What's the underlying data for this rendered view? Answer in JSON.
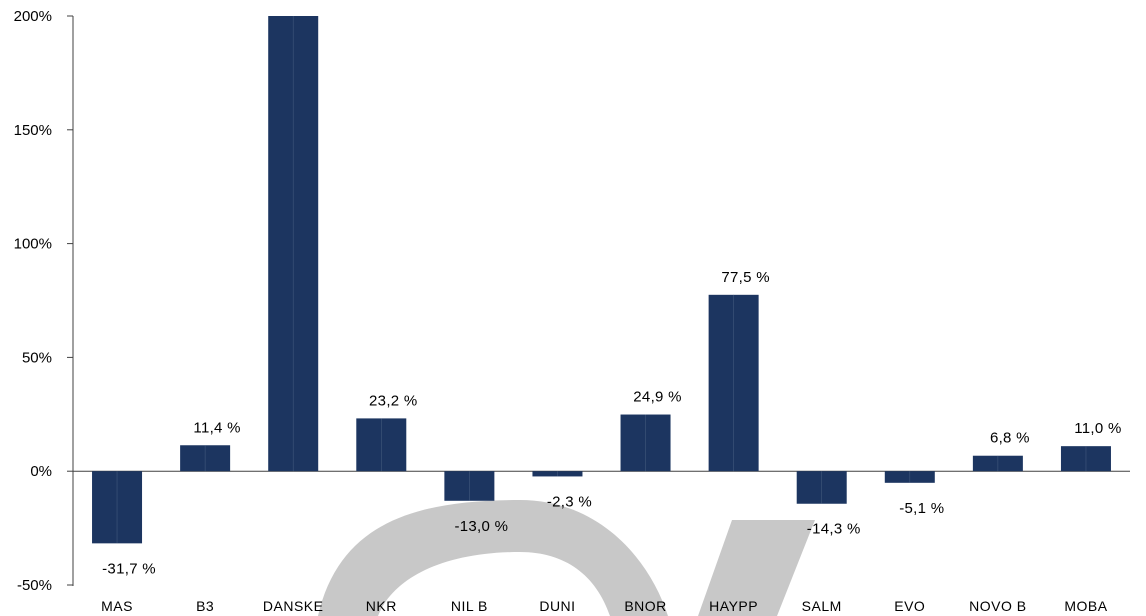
{
  "chart_data": {
    "type": "bar",
    "title": "",
    "xlabel": "",
    "ylabel": "",
    "ylim": [
      -50,
      200
    ],
    "yticks": [
      200,
      150,
      100,
      50,
      0,
      -50
    ],
    "ytick_labels": [
      "200%",
      "150%",
      "100%",
      "50%",
      "0%",
      "-50%"
    ],
    "categories": [
      "MAS",
      "B3",
      "DANSKE",
      "NKR",
      "NIL B",
      "DUNI",
      "BNOR",
      "HAYPP",
      "SALM",
      "EVO",
      "NOVO B",
      "MOBA"
    ],
    "values": [
      -31.7,
      11.4,
      200,
      23.2,
      -13.0,
      -2.3,
      24.9,
      77.5,
      -14.3,
      -5.1,
      6.8,
      11.0
    ],
    "data_labels": [
      "-31,7 %",
      "11,4 %",
      "",
      "23,2 %",
      "-13,0 %",
      "-2,3 %",
      "24,9 %",
      "77,5 %",
      "-14,3 %",
      "-5,1 %",
      "6,8 %",
      "11,0 %"
    ],
    "grid": false,
    "legend": "none",
    "bar_color": "#1c3560",
    "watermark_color": "#c8c8c8"
  }
}
